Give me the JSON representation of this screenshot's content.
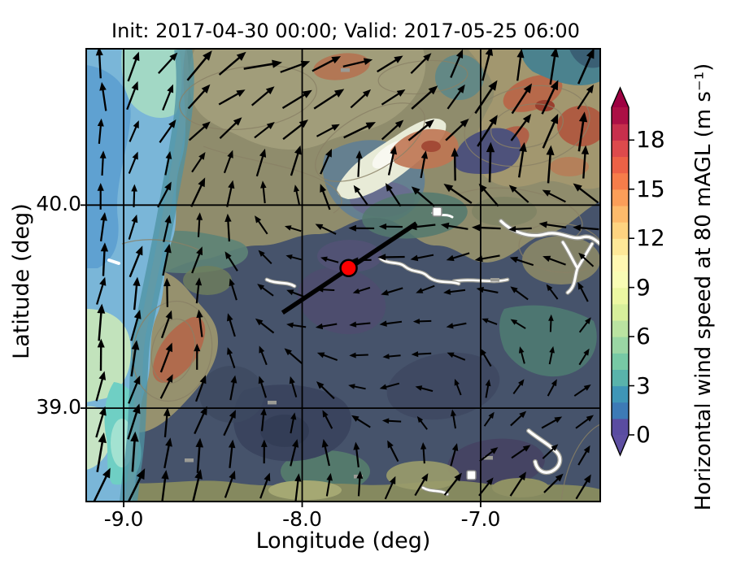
{
  "figure": {
    "title": "Init: 2017-04-30 00:00; Valid: 2017-05-25 06:00",
    "xlabel": "Longitude (deg)",
    "ylabel": "Latitude (deg)"
  },
  "chart_data": {
    "type": "heatmap",
    "subtype": "geographic wind-speed map with terrain contours and quiver wind arrows",
    "title": "Init: 2017-04-30 00:00; Valid: 2017-05-25 06:00",
    "xlabel": "Longitude (deg)",
    "ylabel": "Latitude (deg)",
    "xlim": [
      -9.21,
      -6.33
    ],
    "ylim": [
      38.54,
      40.77
    ],
    "xticks": [
      -9.0,
      -8.0,
      -7.0
    ],
    "xtick_labels": [
      "-9.0",
      "-8.0",
      "-7.0"
    ],
    "yticks": [
      40.0,
      39.0
    ],
    "ytick_labels": [
      "40.0",
      "39.0"
    ],
    "grid": true,
    "colorbar": {
      "label": "Horizontal wind speed at 80 mAGL (m s⁻¹)",
      "ticks": [
        0,
        3,
        6,
        9,
        12,
        15,
        18
      ],
      "range": [
        0,
        20
      ],
      "extend": "both",
      "colormap": "Spectral_r",
      "segment_colors": [
        "#5a4ca1",
        "#3d7ab6",
        "#3f96b7",
        "#59b3ab",
        "#77c9a5",
        "#9ad6a4",
        "#bae3a1",
        "#d7ef9b",
        "#ecf7a2",
        "#f9fcb5",
        "#fff7b2",
        "#fee898",
        "#fed380",
        "#fdba6b",
        "#fb9e59",
        "#f67d4a",
        "#ec6146",
        "#dd4a4c",
        "#c72f4c",
        "#ac1045"
      ],
      "under_color": "#5e4fa2",
      "over_color": "#9e0142"
    },
    "marker": {
      "lon": -7.74,
      "lat": 39.69,
      "color": "#ff0000"
    },
    "transect_line": {
      "lon1": -8.11,
      "lat1": 39.47,
      "lon2": -7.36,
      "lat2": 39.91
    },
    "wind_field": {
      "description": "Coarse estimate of plotted quiver field; angle deg (0=E, 90=N), speed relative 0-1",
      "cols_frac": [
        0,
        0.2,
        0.4,
        0.6,
        0.8,
        1.0
      ],
      "rows_frac": [
        0,
        0.2,
        0.4,
        0.6,
        0.8,
        1.0
      ],
      "grid_angles": [
        [
          100,
          35,
          15,
          25,
          75,
          70
        ],
        [
          95,
          55,
          30,
          45,
          60,
          70
        ],
        [
          90,
          70,
          160,
          185,
          190,
          185
        ],
        [
          85,
          80,
          170,
          200,
          170,
          45
        ],
        [
          80,
          75,
          85,
          190,
          30,
          40
        ],
        [
          75,
          70,
          80,
          45,
          50,
          60
        ]
      ],
      "grid_speeds": [
        [
          0.5,
          0.7,
          0.75,
          0.6,
          0.7,
          0.7
        ],
        [
          0.45,
          0.55,
          0.6,
          0.6,
          0.8,
          0.7
        ],
        [
          0.5,
          0.6,
          0.3,
          0.5,
          0.5,
          0.4
        ],
        [
          0.7,
          0.5,
          0.3,
          0.35,
          0.3,
          0.3
        ],
        [
          0.8,
          0.6,
          0.45,
          0.3,
          0.3,
          0.4
        ],
        [
          0.8,
          0.7,
          0.5,
          0.5,
          0.5,
          0.5
        ]
      ]
    }
  }
}
